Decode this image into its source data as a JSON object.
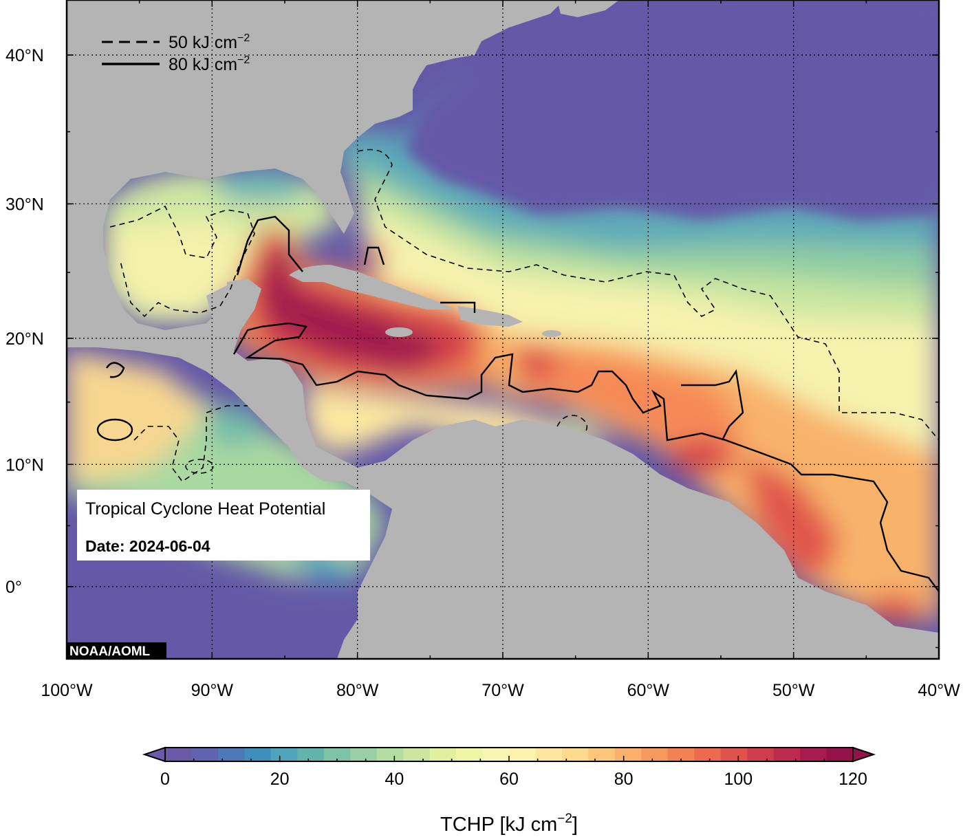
{
  "map": {
    "title": "Tropical Cyclone Heat Potential",
    "date_label": "Date: 2024-06-04",
    "credit": "NOAA/AOML",
    "colors": {
      "ocean_deep_cold": "#6559a7",
      "land": "#b4b4b4",
      "frame": "#000000"
    }
  },
  "legend": {
    "dashed_label": "50 kJ cm",
    "dashed_sup": "−2",
    "solid_label": "80 kJ cm",
    "solid_sup": "−2"
  },
  "axes": {
    "lat_labels": [
      "40°N",
      "30°N",
      "20°N",
      "10°N",
      "0°"
    ],
    "lat_values": [
      40,
      30,
      20,
      10,
      0
    ],
    "lon_labels": [
      "100°W",
      "90°W",
      "80°W",
      "70°W",
      "60°W",
      "50°W",
      "40°W"
    ],
    "lon_values": [
      -100,
      -90,
      -80,
      -70,
      -60,
      -50,
      -40
    ]
  },
  "colorbar": {
    "label_main": "TCHP [kJ cm",
    "label_sup": "−2",
    "label_end": "]",
    "ticks": [
      "0",
      "20",
      "40",
      "60",
      "80",
      "100",
      "120"
    ],
    "tick_values": [
      0,
      20,
      40,
      60,
      80,
      100,
      120
    ],
    "range": [
      0,
      120
    ],
    "bins": [
      "#6a5aa8",
      "#5e64ad",
      "#4a79b5",
      "#3f8fbd",
      "#4ea3bb",
      "#63b3ad",
      "#7cc3a6",
      "#98d0a3",
      "#b3dca1",
      "#cce6a0",
      "#e1ef9f",
      "#eff5a5",
      "#f7f7b3",
      "#fdf3ae",
      "#fde7a0",
      "#fcd98c",
      "#fcc67a",
      "#f9b06a",
      "#f6995d",
      "#f28153",
      "#ec6a4d",
      "#e0534b",
      "#d03e4b",
      "#bd2a4e",
      "#a71b4f",
      "#94134a"
    ]
  }
}
